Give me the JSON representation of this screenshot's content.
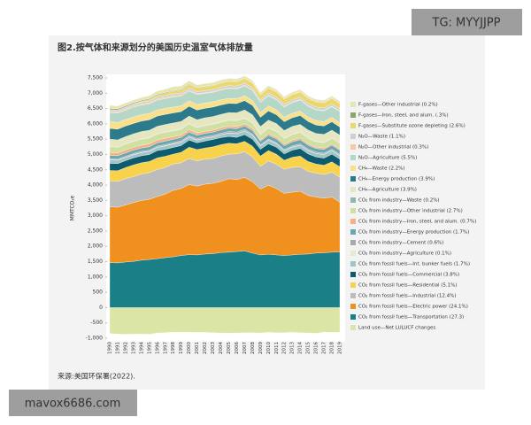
{
  "watermarks": [
    "TG: MYYJJPP",
    "mavox6686.com"
  ],
  "source": "来源:美国环保署(2022).",
  "chart_data": {
    "type": "stacked-area",
    "title": "图2.按气体和来源划分的美国历史温室气体排放量",
    "y_label": "MMTCO₂e",
    "categories": [
      "1990",
      "1991",
      "1992",
      "1993",
      "1994",
      "1995",
      "1996",
      "1997",
      "1998",
      "1999",
      "2000",
      "2001",
      "2002",
      "2003",
      "2004",
      "2005",
      "2006",
      "2007",
      "2008",
      "2009",
      "2010",
      "2011",
      "2012",
      "2013",
      "2014",
      "2015",
      "2016",
      "2017",
      "2018",
      "2019"
    ],
    "ylim": [
      -1000,
      7500
    ],
    "yticks": [
      {
        "value": -1000,
        "label": "-1,000"
      },
      -500,
      0,
      500,
      {
        "value": 1000,
        "label": "1,000"
      },
      {
        "value": 1500,
        "label": "1,500"
      },
      {
        "value": 2000,
        "label": "2,000"
      },
      {
        "value": 2500,
        "label": "2,500"
      },
      {
        "value": 3000,
        "label": "3,000"
      },
      {
        "value": 3500,
        "label": "3,500"
      },
      {
        "value": 4000,
        "label": "4,000"
      },
      {
        "value": 4500,
        "label": "4,500"
      },
      {
        "value": 5000,
        "label": "5,000"
      },
      {
        "value": 5500,
        "label": "5,500"
      },
      {
        "value": 6000,
        "label": "6,000"
      },
      {
        "value": 6500,
        "label": "6,500"
      },
      {
        "value": 7000,
        "label": "7,000"
      },
      {
        "value": 7500,
        "label": "7,500"
      }
    ],
    "series": [
      {
        "name": "Land use—Net LULUCF changes",
        "color": "#dbe6a6",
        "values": [
          -850,
          -860,
          -870,
          -860,
          -860,
          -870,
          -830,
          -820,
          -800,
          -800,
          -800,
          -810,
          -810,
          -820,
          -830,
          -830,
          -830,
          -820,
          -820,
          -830,
          -810,
          -820,
          -820,
          -810,
          -820,
          -830,
          -840,
          -800,
          -810,
          -810
        ]
      },
      {
        "name": "CO₂ from fossil fuels—Transportation (27.3)",
        "color": "#1a7f86",
        "values": [
          1470,
          1460,
          1490,
          1510,
          1550,
          1570,
          1600,
          1630,
          1660,
          1700,
          1730,
          1720,
          1750,
          1760,
          1800,
          1810,
          1830,
          1850,
          1780,
          1720,
          1740,
          1720,
          1700,
          1720,
          1740,
          1750,
          1780,
          1790,
          1810,
          1820
        ]
      },
      {
        "name": "CO₂ from fossil fuels—Electric power (24.1%)",
        "color": "#f0901e",
        "values": [
          1820,
          1820,
          1860,
          1920,
          1950,
          1970,
          2030,
          2080,
          2170,
          2190,
          2290,
          2250,
          2280,
          2300,
          2320,
          2400,
          2350,
          2400,
          2330,
          2150,
          2260,
          2170,
          2030,
          2050,
          2060,
          1910,
          1830,
          1780,
          1800,
          1620
        ]
      },
      {
        "name": "CO₂ from fossil fuels—Industrial (12.4%)",
        "color": "#bcbcbc",
        "values": [
          850,
          840,
          860,
          850,
          860,
          870,
          880,
          870,
          860,
          840,
          850,
          820,
          820,
          810,
          830,
          800,
          840,
          840,
          810,
          740,
          790,
          790,
          790,
          810,
          800,
          790,
          780,
          780,
          810,
          820
        ]
      },
      {
        "name": "CO₂ from fossil fuels—Residential (5.1%)",
        "color": "#f7d24a",
        "values": [
          340,
          350,
          360,
          380,
          370,
          360,
          380,
          360,
          320,
          340,
          370,
          370,
          360,
          380,
          370,
          360,
          330,
          340,
          350,
          340,
          340,
          330,
          290,
          330,
          350,
          320,
          300,
          300,
          340,
          340
        ]
      },
      {
        "name": "CO₂ from fossil fuels—Commercial (3.8%)",
        "color": "#0d5b6c",
        "values": [
          230,
          230,
          230,
          230,
          230,
          230,
          240,
          230,
          220,
          220,
          230,
          220,
          230,
          240,
          230,
          220,
          210,
          220,
          230,
          220,
          220,
          230,
          210,
          230,
          250,
          250,
          230,
          230,
          250,
          250
        ]
      },
      {
        "name": "CO₂ from fossil fuels—Int. bunker fuels (1.7%)",
        "color": "#9ec6c8",
        "values": [
          110,
          110,
          100,
          100,
          100,
          100,
          100,
          110,
          110,
          110,
          100,
          90,
          90,
          80,
          90,
          110,
          120,
          120,
          120,
          110,
          120,
          110,
          100,
          100,
          100,
          110,
          110,
          120,
          120,
          110
        ]
      },
      {
        "name": "CO₂ from industry—Agriculture (0.1%)",
        "color": "#e2ecd0",
        "values": [
          8,
          8,
          8,
          8,
          8,
          8,
          8,
          8,
          8,
          8,
          8,
          8,
          8,
          8,
          8,
          8,
          8,
          8,
          8,
          7,
          7,
          7,
          7,
          7,
          7,
          7,
          7,
          7,
          7,
          7
        ]
      },
      {
        "name": "CO₂ from industry—Cement (0.6%)",
        "color": "#a9a9a9",
        "values": [
          33,
          32,
          34,
          35,
          36,
          37,
          37,
          38,
          39,
          40,
          41,
          41,
          43,
          44,
          45,
          46,
          46,
          45,
          41,
          29,
          31,
          32,
          35,
          36,
          39,
          40,
          39,
          40,
          39,
          41
        ]
      },
      {
        "name": "CO₂ from industry—Energy production (1.7%)",
        "color": "#6aa7b0",
        "values": [
          110,
          110,
          110,
          110,
          110,
          110,
          110,
          110,
          110,
          110,
          110,
          110,
          110,
          110,
          110,
          110,
          110,
          110,
          115,
          115,
          120,
          120,
          125,
          130,
          135,
          125,
          120,
          120,
          125,
          130
        ]
      },
      {
        "name": "CO₂ from industry—Iron, steel, and alum. (0.7%)",
        "color": "#f4b183",
        "values": [
          100,
          90,
          95,
          95,
          90,
          90,
          90,
          90,
          85,
          75,
          80,
          70,
          65,
          65,
          65,
          70,
          70,
          70,
          65,
          45,
          55,
          60,
          55,
          55,
          60,
          50,
          45,
          45,
          45,
          45
        ]
      },
      {
        "name": "CO₂ from industry—Other industrial (2.7%)",
        "color": "#cfe0a0",
        "values": [
          190,
          185,
          190,
          190,
          195,
          195,
          195,
          200,
          190,
          190,
          190,
          180,
          185,
          185,
          185,
          180,
          185,
          185,
          180,
          170,
          175,
          175,
          175,
          180,
          180,
          180,
          175,
          175,
          175,
          180
        ]
      },
      {
        "name": "CO₂ from industry—Waste (0.2%)",
        "color": "#8fb8b0",
        "values": [
          12,
          12,
          12,
          12,
          12,
          12,
          12,
          12,
          12,
          12,
          12,
          12,
          12,
          12,
          12,
          12,
          12,
          12,
          12,
          12,
          12,
          12,
          12,
          12,
          12,
          12,
          12,
          12,
          12,
          12
        ]
      },
      {
        "name": "CH₄—Agriculture (3.9%)",
        "color": "#e6e6c0",
        "values": [
          230,
          230,
          235,
          235,
          240,
          240,
          240,
          240,
          245,
          245,
          245,
          245,
          245,
          245,
          245,
          245,
          250,
          255,
          255,
          255,
          255,
          255,
          255,
          255,
          250,
          255,
          260,
          260,
          260,
          260
        ]
      },
      {
        "name": "CH₄—Energy production (3.9%)",
        "color": "#2c7a8a",
        "values": [
          350,
          350,
          345,
          340,
          340,
          340,
          335,
          330,
          330,
          320,
          320,
          315,
          310,
          310,
          305,
          300,
          300,
          305,
          305,
          300,
          300,
          290,
          285,
          285,
          290,
          280,
          275,
          270,
          275,
          260
        ]
      },
      {
        "name": "CH₄—Waste (2.2%)",
        "color": "#fbe08c",
        "values": [
          215,
          215,
          215,
          210,
          210,
          205,
          200,
          195,
          190,
          185,
          180,
          175,
          170,
          170,
          170,
          165,
          160,
          160,
          160,
          160,
          160,
          155,
          150,
          145,
          145,
          145,
          145,
          145,
          145,
          145
        ]
      },
      {
        "name": "N₂O—Agriculture (5.5%)",
        "color": "#b5d7c8",
        "values": [
          300,
          310,
          305,
          320,
          310,
          315,
          320,
          320,
          330,
          320,
          320,
          330,
          315,
          310,
          320,
          320,
          320,
          320,
          330,
          325,
          330,
          330,
          330,
          350,
          360,
          350,
          350,
          350,
          350,
          360
        ]
      },
      {
        "name": "N₂O—Other industrial (0.3%)",
        "color": "#f8c9a0",
        "values": [
          40,
          38,
          38,
          38,
          38,
          38,
          38,
          37,
          35,
          33,
          30,
          25,
          25,
          25,
          25,
          24,
          22,
          23,
          20,
          18,
          20,
          19,
          19,
          19,
          19,
          19,
          19,
          19,
          19,
          19
        ]
      },
      {
        "name": "N₂O—Waste (1.1%)",
        "color": "#d0d0d0",
        "values": [
          60,
          60,
          61,
          62,
          62,
          63,
          64,
          65,
          66,
          66,
          67,
          67,
          68,
          68,
          69,
          69,
          70,
          70,
          70,
          71,
          71,
          71,
          71,
          72,
          72,
          72,
          72,
          73,
          73,
          73
        ]
      },
      {
        "name": "F-gases—Substitute ozone depleting (2.6%)",
        "color": "#ecd76a",
        "values": [
          0,
          2,
          5,
          12,
          25,
          40,
          55,
          70,
          85,
          100,
          110,
          115,
          120,
          125,
          130,
          135,
          140,
          145,
          150,
          155,
          160,
          165,
          165,
          168,
          168,
          170,
          170,
          171,
          172,
          172
        ]
      },
      {
        "name": "F-gases—Iron, steel, and alum. (.3%)",
        "color": "#88a76b",
        "values": [
          40,
          38,
          35,
          34,
          32,
          30,
          28,
          27,
          25,
          22,
          22,
          20,
          19,
          19,
          18,
          18,
          17,
          17,
          16,
          15,
          15,
          15,
          14,
          14,
          14,
          14,
          14,
          14,
          14,
          14
        ]
      },
      {
        "name": "F-gases—Other industrial (0.2%)",
        "color": "#e9e5b3",
        "values": [
          100,
          90,
          95,
          90,
          95,
          100,
          110,
          115,
          130,
          110,
          105,
          90,
          95,
          80,
          90,
          85,
          80,
          75,
          75,
          70,
          70,
          70,
          70,
          70,
          70,
          68,
          68,
          68,
          68,
          68
        ]
      }
    ]
  }
}
